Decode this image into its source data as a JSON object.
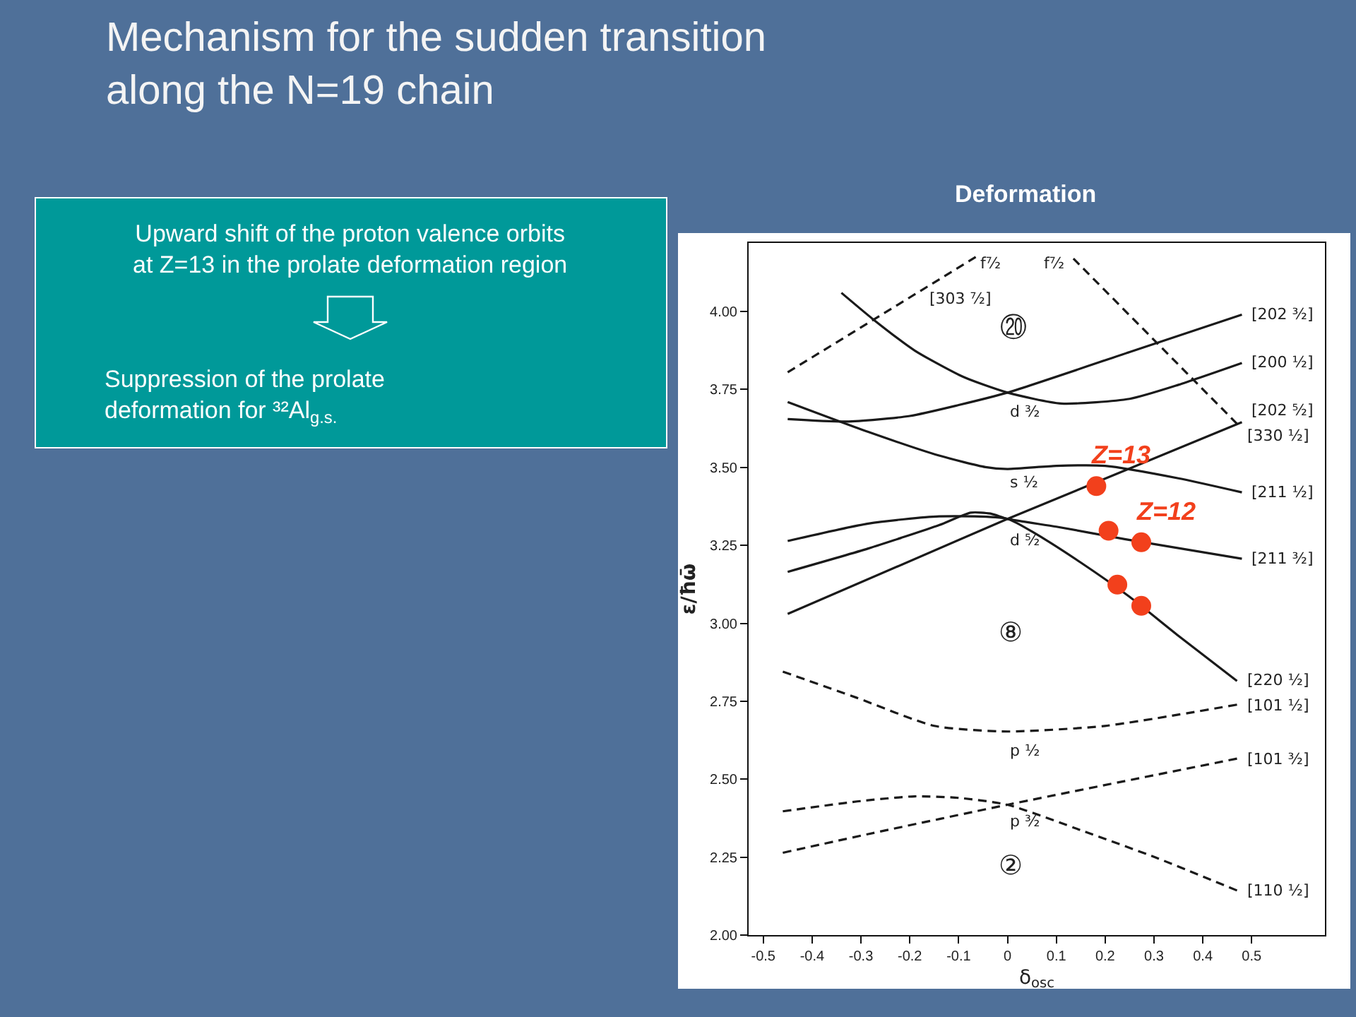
{
  "chart_data": {
    "type": "line",
    "title": "Mechanism for the sudden transition\nalong the N=19 chain",
    "subtitle": "Deformation",
    "xlabel": "δ$_{osc}$",
    "ylabel": "ε/ħω̄",
    "xlim": [
      -0.53,
      0.65
    ],
    "ylim": [
      2.0,
      4.22
    ],
    "xticks": [
      -0.5,
      -0.4,
      -0.3,
      -0.2,
      -0.1,
      0,
      0.1,
      0.2,
      0.3,
      0.4,
      0.5
    ],
    "yticks": [
      {
        "value": 2.0,
        "label": "2.00"
      },
      {
        "value": 2.25,
        "label": "2.25"
      },
      {
        "value": 2.5,
        "label": "2.50"
      },
      {
        "value": 2.75,
        "label": "2.75"
      },
      {
        "value": 3.0,
        "label": "3.00"
      },
      {
        "value": 3.25,
        "label": "3.25"
      },
      {
        "value": 3.5,
        "label": "3.50"
      },
      {
        "value": 3.75,
        "label": "3.75"
      },
      {
        "value": 4.0,
        "label": "4.00"
      }
    ],
    "line_style": "solid",
    "series": [
      {
        "name": "[303 ⁷⁄₂]",
        "color": "#1a1a1a",
        "line_style": "dashed",
        "x": [
          -0.45,
          -0.065
        ],
        "values": [
          3.805,
          4.175
        ]
      },
      {
        "name": "[330 ¹⁄₂]",
        "color": "#1a1a1a",
        "line_style": "dashed",
        "x": [
          0.135,
          0.47
        ],
        "values": [
          4.17,
          3.64
        ]
      },
      {
        "name": "[200 ¹⁄₂]",
        "color": "#1a1a1a",
        "x": [
          -0.34,
          -0.275,
          -0.19,
          -0.09,
          0,
          0.11,
          0.25,
          0.35,
          0.48
        ],
        "values": [
          4.06,
          3.975,
          3.875,
          3.79,
          3.74,
          3.705,
          3.72,
          3.765,
          3.835
        ]
      },
      {
        "name": "[202 ³⁄₂]",
        "color": "#1a1a1a",
        "x": [
          -0.45,
          -0.33,
          -0.2,
          -0.1,
          0,
          0.25,
          0.48
        ],
        "values": [
          3.655,
          3.647,
          3.665,
          3.7,
          3.74,
          3.87,
          3.99
        ]
      },
      {
        "name": "[211 ¹⁄₂]",
        "color": "#1a1a1a",
        "x": [
          -0.45,
          -0.285,
          -0.14,
          -0.045,
          0,
          0.1,
          0.2,
          0.35,
          0.48
        ],
        "values": [
          3.71,
          3.614,
          3.538,
          3.501,
          3.495,
          3.505,
          3.505,
          3.465,
          3.42
        ]
      },
      {
        "name": "[202 ⁵⁄₂]",
        "color": "#1a1a1a",
        "x": [
          -0.45,
          0,
          0.48
        ],
        "values": [
          3.03,
          3.335,
          3.645
        ]
      },
      {
        "name": "[211 ³⁄₂]",
        "color": "#1a1a1a",
        "x": [
          -0.45,
          -0.285,
          -0.14,
          -0.075,
          -0.035,
          0,
          0.1,
          0.24,
          0.48
        ],
        "values": [
          3.165,
          3.24,
          3.315,
          3.355,
          3.352,
          3.335,
          3.31,
          3.27,
          3.207
        ]
      },
      {
        "name": "[220 ¹⁄₂]",
        "color": "#1a1a1a",
        "x": [
          -0.45,
          -0.285,
          -0.14,
          0,
          0.06,
          0.15,
          0.25,
          0.35,
          0.47
        ],
        "values": [
          3.264,
          3.32,
          3.343,
          3.335,
          3.285,
          3.195,
          3.085,
          2.96,
          2.815
        ]
      },
      {
        "name": "[101 ¹⁄₂]",
        "color": "#1a1a1a",
        "line_style": "dashed",
        "x": [
          -0.46,
          -0.31,
          -0.15,
          0,
          0.2,
          0.47
        ],
        "values": [
          2.845,
          2.762,
          2.671,
          2.653,
          2.671,
          2.739
        ]
      },
      {
        "name": "[110 ¹⁄₂]",
        "color": "#1a1a1a",
        "line_style": "dashed",
        "x": [
          -0.46,
          -0.3,
          -0.19,
          -0.1,
          0,
          0.158,
          0.303,
          0.47
        ],
        "values": [
          2.397,
          2.43,
          2.445,
          2.44,
          2.418,
          2.332,
          2.249,
          2.143
        ]
      },
      {
        "name": "[101 ³⁄₂]",
        "color": "#1a1a1a",
        "line_style": "dashed",
        "x": [
          -0.46,
          -0.285,
          0,
          0.47
        ],
        "values": [
          2.264,
          2.324,
          2.418,
          2.566
        ]
      },
      {
        "name": "Z=13",
        "type": "scatter",
        "marker": "circle",
        "color": "#f2401c",
        "x": [
          0.182
        ],
        "values": [
          3.44
        ]
      },
      {
        "name": "Z=12",
        "type": "scatter",
        "marker": "circle",
        "color": "#f2401c",
        "x": [
          0.274,
          0.207,
          0.225,
          0.274
        ],
        "values": [
          3.26,
          3.297,
          3.124,
          3.056
        ]
      }
    ],
    "annotations": [
      "Upward shift of the proton valence orbits\nat Z=13 in the prolate deformation region",
      "Suppression of the prolate\ndeformation for ³²Al$_{g.s.}$",
      "f⁷⁄₂",
      "f⁷⁄₂",
      "⑳",
      "⑧",
      "②",
      "d ³⁄₂",
      "s ¹⁄₂",
      "d ⁵⁄₂",
      "p ¹⁄₂",
      "p ³⁄₂"
    ]
  }
}
